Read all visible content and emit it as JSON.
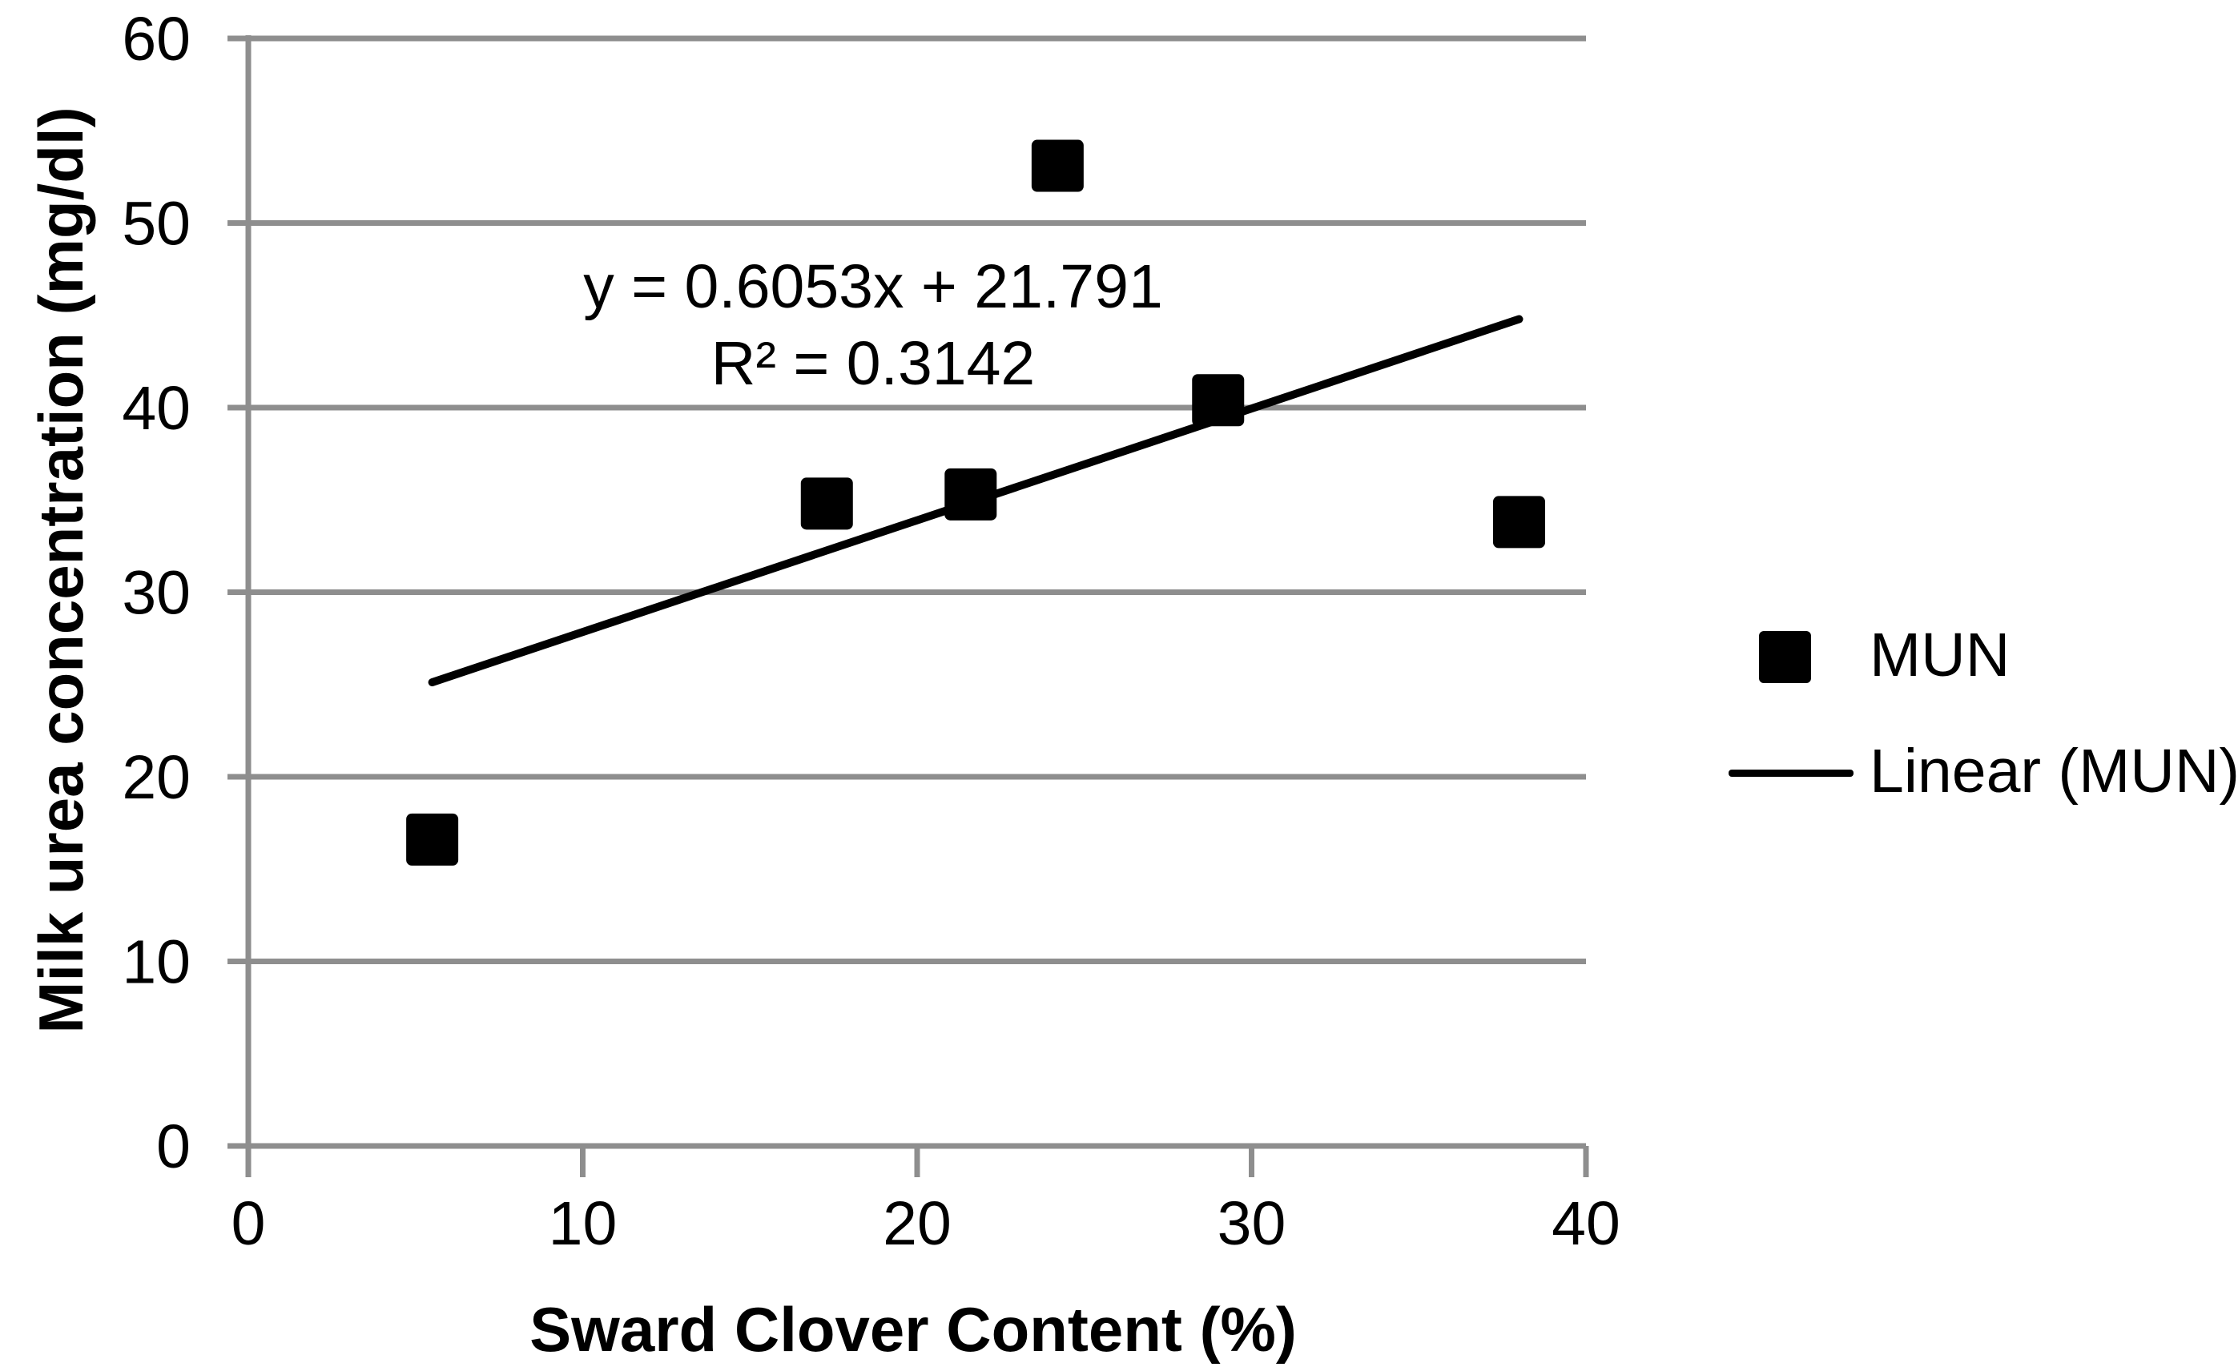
{
  "chart_data": {
    "type": "scatter",
    "title": "",
    "xlabel": "Sward Clover Content (%)",
    "ylabel": "Milk urea concentration (mg/dl)",
    "xlim": [
      0,
      40
    ],
    "ylim": [
      0,
      60
    ],
    "x_ticks": [
      0,
      10,
      20,
      30,
      40
    ],
    "y_ticks": [
      0,
      10,
      20,
      30,
      40,
      50,
      60
    ],
    "grid": "horizontal-major-on",
    "legend_position": "right",
    "series": [
      {
        "name": "MUN",
        "type": "scatter",
        "marker": "square",
        "color": "#000000",
        "points": [
          {
            "x": 5.5,
            "y": 16.6
          },
          {
            "x": 17.3,
            "y": 34.8
          },
          {
            "x": 21.6,
            "y": 35.3
          },
          {
            "x": 24.2,
            "y": 53.1
          },
          {
            "x": 29.0,
            "y": 40.4
          },
          {
            "x": 38.0,
            "y": 33.8
          }
        ]
      },
      {
        "name": "Linear (MUN)",
        "type": "trendline",
        "color": "#000000",
        "slope": 0.6053,
        "intercept": 21.791,
        "x_start": 5.5,
        "x_end": 38.0
      }
    ],
    "annotations": [
      {
        "text": "y = 0.6053x + 21.791"
      },
      {
        "text": "R² = 0.3142"
      }
    ],
    "colors": {
      "grid": "#8E8E8E",
      "axis": "#8E8E8E",
      "series": "#000000",
      "text": "#000000",
      "background": "#FFFFFF"
    }
  },
  "legend": {
    "items": [
      {
        "label": "MUN",
        "marker": "square"
      },
      {
        "label": "Linear (MUN)",
        "marker": "line"
      }
    ]
  }
}
